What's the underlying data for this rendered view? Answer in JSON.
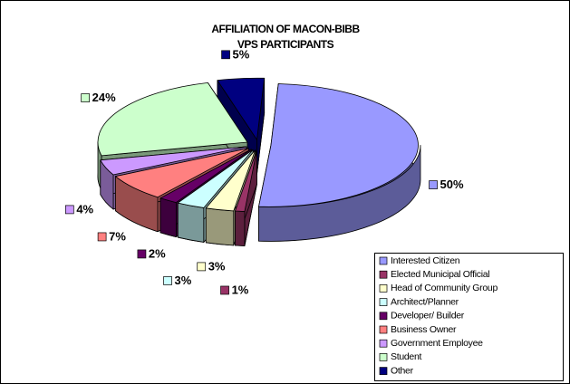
{
  "chart_data": {
    "type": "pie3d",
    "title": [
      "AFFILIATION OF MACON-BIBB",
      "VPS PARTICIPANTS"
    ],
    "categories": [
      "Interested Citizen",
      "Elected Municipal Official",
      "Head of Community Group",
      "Architect/Planner",
      "Developer/ Builder",
      "Business Owner",
      "Government Employee",
      "Student",
      "Other"
    ],
    "values": [
      50,
      1,
      3,
      3,
      2,
      7,
      4,
      24,
      5
    ],
    "value_labels": [
      "50%",
      "1%",
      "3%",
      "3%",
      "2%",
      "7%",
      "4%",
      "24%",
      "5%"
    ],
    "colors": [
      "#9999ff",
      "#993366",
      "#ffffcc",
      "#ccffff",
      "#660066",
      "#ff8080",
      "#cc99ff",
      "#ccffcc",
      "#000080"
    ],
    "legend": "bottom-right"
  }
}
